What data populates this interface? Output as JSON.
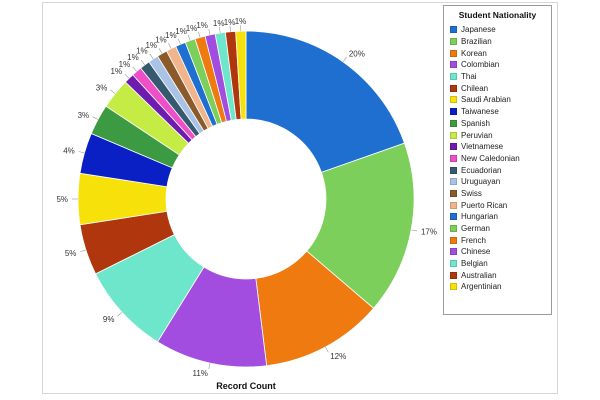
{
  "chart_data": {
    "type": "pie",
    "title": "",
    "xlabel": "Record Count",
    "legend": {
      "title": "Student Nationality",
      "placement": "top-right"
    },
    "slices": [
      {
        "label": "Japanese",
        "value": 20,
        "color": "#1f6fd1"
      },
      {
        "label": "Brazilian",
        "value": 17,
        "color": "#7ccf5a"
      },
      {
        "label": "Korean",
        "value": 12,
        "color": "#ef7a10"
      },
      {
        "label": "Colombian",
        "value": 11,
        "color": "#a24de0"
      },
      {
        "label": "Thai",
        "value": 9,
        "color": "#6ee6cc"
      },
      {
        "label": "Chilean",
        "value": 5,
        "color": "#b0360d"
      },
      {
        "label": "Saudi Arabian",
        "value": 5,
        "color": "#f6e20a"
      },
      {
        "label": "Taiwanese",
        "value": 4,
        "color": "#0a1fc4"
      },
      {
        "label": "Spanish",
        "value": 3,
        "color": "#3c9a42"
      },
      {
        "label": "Peruvian",
        "value": 3,
        "color": "#c4ec45"
      },
      {
        "label": "Vietnamese",
        "value": 1,
        "color": "#6e1cb0"
      },
      {
        "label": "New Caledonian",
        "value": 1,
        "color": "#ee4fc8"
      },
      {
        "label": "Ecuadorian",
        "value": 1,
        "color": "#35596e"
      },
      {
        "label": "Uruguayan",
        "value": 1,
        "color": "#a9c3e6"
      },
      {
        "label": "Swiss",
        "value": 1,
        "color": "#8a5a2a"
      },
      {
        "label": "Puerto Rican",
        "value": 1,
        "color": "#f0b58a"
      },
      {
        "label": "Hungarian",
        "value": 1,
        "color": "#1f6fd1"
      },
      {
        "label": "German",
        "value": 1,
        "color": "#7ccf5a"
      },
      {
        "label": "French",
        "value": 1,
        "color": "#ef7a10"
      },
      {
        "label": "Chinese",
        "value": 1,
        "color": "#a24de0"
      },
      {
        "label": "Belgian",
        "value": 1,
        "color": "#6ee6cc"
      },
      {
        "label": "Australian",
        "value": 1,
        "color": "#b0360d"
      },
      {
        "label": "Argentinian",
        "value": 1,
        "color": "#f6e20a"
      }
    ]
  }
}
